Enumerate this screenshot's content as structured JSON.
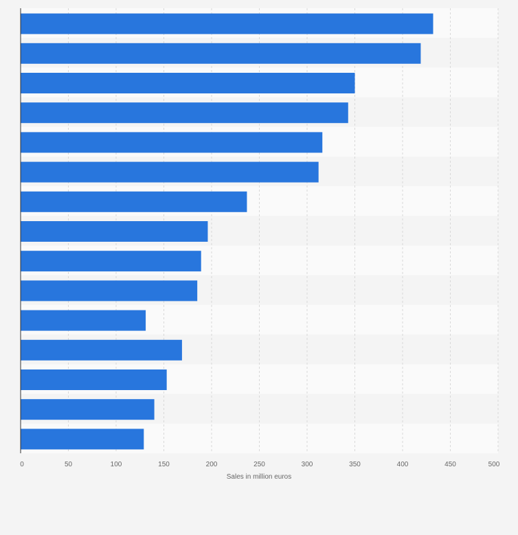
{
  "chart_data": {
    "type": "bar",
    "orientation": "horizontal",
    "title": "",
    "xlabel": "Sales in million euros",
    "ylabel": "",
    "xlim": [
      0,
      500
    ],
    "xticks": [
      0,
      50,
      100,
      150,
      200,
      250,
      300,
      350,
      400,
      450,
      500
    ],
    "xtick_labels": [
      "0",
      "50",
      "100",
      "150",
      "200",
      "250",
      "300",
      "350",
      "400",
      "450",
      "500"
    ],
    "categories": [
      "",
      "",
      "",
      "",
      "",
      "",
      "",
      "",
      "",
      "",
      "",
      "",
      "",
      "",
      ""
    ],
    "values": [
      432,
      419,
      350,
      343,
      316,
      312,
      237,
      196,
      189,
      185,
      131,
      169,
      153,
      140,
      129
    ],
    "grid": true,
    "bar_color": "#2876dd",
    "band_colors": [
      "#f4f4f4",
      "#fafafa"
    ],
    "gridline_color": "#d8d8d8",
    "axis_color": "#333333",
    "text_color": "#666666"
  }
}
